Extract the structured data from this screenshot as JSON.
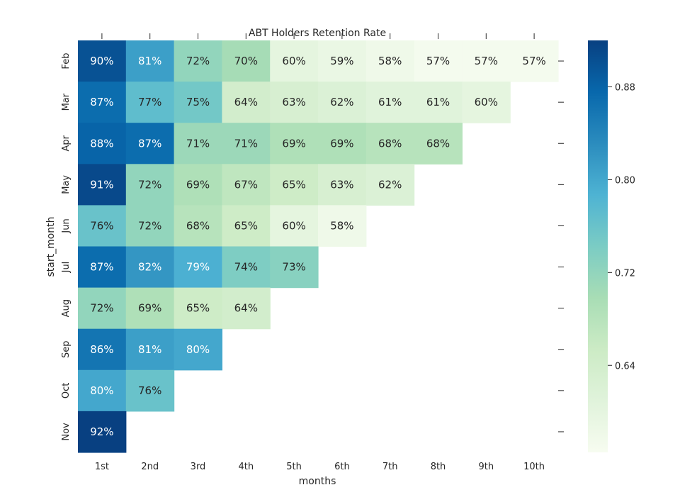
{
  "chart_data": {
    "type": "heatmap",
    "title": "ABT Holders Retention Rate",
    "xlabel": "months",
    "ylabel": "start_month",
    "x_categories": [
      "1st",
      "2nd",
      "3rd",
      "4th",
      "5th",
      "6th",
      "7th",
      "8th",
      "9th",
      "10th"
    ],
    "y_categories": [
      "Feb",
      "Mar",
      "Apr",
      "May",
      "Jun",
      "Jul",
      "Aug",
      "Sep",
      "Oct",
      "Nov"
    ],
    "values": [
      [
        0.9,
        0.81,
        0.72,
        0.7,
        0.6,
        0.59,
        0.58,
        0.57,
        0.57,
        0.57
      ],
      [
        0.87,
        0.77,
        0.75,
        0.64,
        0.63,
        0.62,
        0.61,
        0.61,
        0.6,
        null
      ],
      [
        0.88,
        0.87,
        0.71,
        0.71,
        0.69,
        0.69,
        0.68,
        0.68,
        null,
        null
      ],
      [
        0.91,
        0.72,
        0.69,
        0.67,
        0.65,
        0.63,
        0.62,
        null,
        null,
        null
      ],
      [
        0.76,
        0.72,
        0.68,
        0.65,
        0.6,
        0.58,
        null,
        null,
        null,
        null
      ],
      [
        0.87,
        0.82,
        0.79,
        0.74,
        0.73,
        null,
        null,
        null,
        null,
        null
      ],
      [
        0.72,
        0.69,
        0.65,
        0.64,
        null,
        null,
        null,
        null,
        null,
        null
      ],
      [
        0.86,
        0.81,
        0.8,
        null,
        null,
        null,
        null,
        null,
        null,
        null
      ],
      [
        0.8,
        0.76,
        null,
        null,
        null,
        null,
        null,
        null,
        null,
        null
      ],
      [
        0.92,
        null,
        null,
        null,
        null,
        null,
        null,
        null,
        null,
        null
      ]
    ],
    "cell_labels": [
      [
        "90%",
        "81%",
        "72%",
        "70%",
        "60%",
        "59%",
        "58%",
        "57%",
        "57%",
        "57%"
      ],
      [
        "87%",
        "77%",
        "75%",
        "64%",
        "63%",
        "62%",
        "61%",
        "61%",
        "60%",
        null
      ],
      [
        "88%",
        "87%",
        "71%",
        "71%",
        "69%",
        "69%",
        "68%",
        "68%",
        null,
        null
      ],
      [
        "91%",
        "72%",
        "69%",
        "67%",
        "65%",
        "63%",
        "62%",
        null,
        null,
        null
      ],
      [
        "76%",
        "72%",
        "68%",
        "65%",
        "60%",
        "58%",
        null,
        null,
        null,
        null
      ],
      [
        "87%",
        "82%",
        "79%",
        "74%",
        "73%",
        null,
        null,
        null,
        null,
        null
      ],
      [
        "72%",
        "69%",
        "65%",
        "64%",
        null,
        null,
        null,
        null,
        null,
        null
      ],
      [
        "86%",
        "81%",
        "80%",
        null,
        null,
        null,
        null,
        null,
        null,
        null
      ],
      [
        "80%",
        "76%",
        null,
        null,
        null,
        null,
        null,
        null,
        null,
        null
      ],
      [
        "92%",
        null,
        null,
        null,
        null,
        null,
        null,
        null,
        null,
        null
      ]
    ],
    "colormap": "GnBu",
    "color_range": [
      0.565,
      0.92
    ],
    "colorbar_ticks": [
      0.64,
      0.72,
      0.8,
      0.88
    ],
    "colorbar_tick_labels": [
      "0.64",
      "0.72",
      "0.80",
      "0.88"
    ],
    "grid": false,
    "legend": "colorbar-right"
  }
}
